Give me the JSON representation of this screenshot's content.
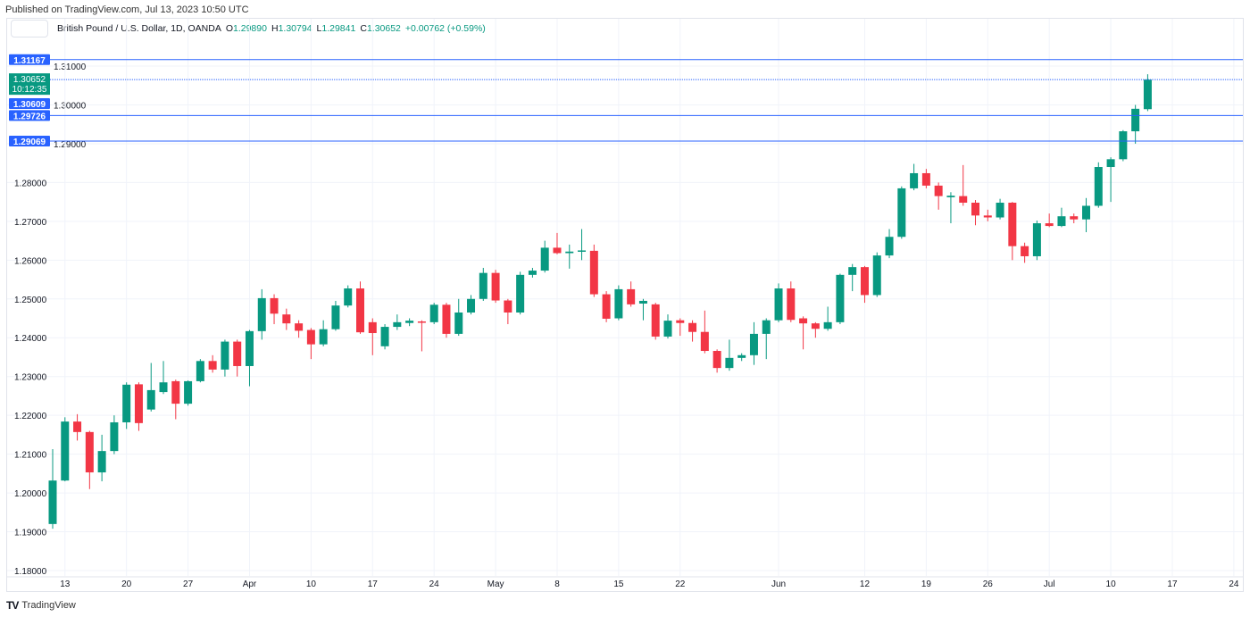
{
  "published": "Published on TradingView.com, Jul 13, 2023 10:50 UTC",
  "logo_text": "TradingView",
  "legend": {
    "symbol": "British Pound / U.S. Dollar, 1D, OANDA",
    "o_label": "O",
    "o": "1.29890",
    "h_label": "H",
    "h": "1.30794",
    "l_label": "L",
    "l": "1.29841",
    "c_label": "C",
    "c": "1.30652",
    "change": "+0.00762 (+0.59%)"
  },
  "colors": {
    "up": "#089981",
    "down": "#f23645",
    "line": "#2962ff",
    "grid": "#f0f3fa"
  },
  "chart_data": {
    "type": "candlestick",
    "title": "British Pound / U.S. Dollar, 1D, OANDA",
    "ylim": [
      1.18,
      1.3135
    ],
    "y_ticks": [
      "1.18000",
      "1.19000",
      "1.20000",
      "1.21000",
      "1.22000",
      "1.23000",
      "1.24000",
      "1.25000",
      "1.26000",
      "1.27000",
      "1.28000",
      "1.29000",
      "1.30000",
      "1.31000"
    ],
    "x_ticks": [
      {
        "i": 1,
        "label": "13"
      },
      {
        "i": 6,
        "label": "20"
      },
      {
        "i": 11,
        "label": "27"
      },
      {
        "i": 16,
        "label": "Apr"
      },
      {
        "i": 21,
        "label": "10"
      },
      {
        "i": 26,
        "label": "17"
      },
      {
        "i": 31,
        "label": "24"
      },
      {
        "i": 36,
        "label": "May"
      },
      {
        "i": 41,
        "label": "8"
      },
      {
        "i": 46,
        "label": "15"
      },
      {
        "i": 51,
        "label": "22"
      },
      {
        "i": 59,
        "label": "Jun"
      },
      {
        "i": 66,
        "label": "12"
      },
      {
        "i": 71,
        "label": "19"
      },
      {
        "i": 76,
        "label": "26"
      },
      {
        "i": 81,
        "label": "Jul"
      },
      {
        "i": 86,
        "label": "10"
      },
      {
        "i": 91,
        "label": "17"
      },
      {
        "i": 96,
        "label": "24"
      }
    ],
    "ohlc": [
      [
        1.192,
        1.2113,
        1.1908,
        1.2032
      ],
      [
        1.2032,
        1.2195,
        1.203,
        1.2184
      ],
      [
        1.2184,
        1.2203,
        1.2135,
        1.2157
      ],
      [
        1.2157,
        1.216,
        1.201,
        1.2053
      ],
      [
        1.2053,
        1.215,
        1.203,
        1.2108
      ],
      [
        1.2108,
        1.22,
        1.21,
        1.2182
      ],
      [
        1.2182,
        1.2285,
        1.2165,
        1.2279
      ],
      [
        1.228,
        1.2285,
        1.216,
        1.218
      ],
      [
        1.2215,
        1.2335,
        1.221,
        1.2265
      ],
      [
        1.226,
        1.234,
        1.2255,
        1.2285
      ],
      [
        1.2288,
        1.2292,
        1.219,
        1.223
      ],
      [
        1.223,
        1.229,
        1.2225,
        1.2288
      ],
      [
        1.2288,
        1.2345,
        1.2285,
        1.234
      ],
      [
        1.234,
        1.2355,
        1.231,
        1.2318
      ],
      [
        1.2318,
        1.2395,
        1.23,
        1.239
      ],
      [
        1.239,
        1.2395,
        1.23,
        1.2327
      ],
      [
        1.2327,
        1.242,
        1.2275,
        1.2417
      ],
      [
        1.2417,
        1.2525,
        1.2395,
        1.2502
      ],
      [
        1.2502,
        1.2512,
        1.2435,
        1.2462
      ],
      [
        1.246,
        1.2475,
        1.242,
        1.2437
      ],
      [
        1.2437,
        1.2445,
        1.24,
        1.2418
      ],
      [
        1.242,
        1.2425,
        1.2345,
        1.2383
      ],
      [
        1.2383,
        1.2445,
        1.2378,
        1.2422
      ],
      [
        1.2422,
        1.2495,
        1.2418,
        1.2483
      ],
      [
        1.2483,
        1.2535,
        1.2478,
        1.2527
      ],
      [
        1.2527,
        1.2545,
        1.241,
        1.2414
      ],
      [
        1.244,
        1.245,
        1.2355,
        1.2412
      ],
      [
        1.2378,
        1.2435,
        1.237,
        1.2428
      ],
      [
        1.2428,
        1.246,
        1.242,
        1.244
      ],
      [
        1.2438,
        1.245,
        1.243,
        1.2444
      ],
      [
        1.2442,
        1.2445,
        1.2365,
        1.244
      ],
      [
        1.244,
        1.249,
        1.2435,
        1.2485
      ],
      [
        1.2485,
        1.249,
        1.24,
        1.241
      ],
      [
        1.241,
        1.25,
        1.2405,
        1.2465
      ],
      [
        1.2465,
        1.251,
        1.246,
        1.25
      ],
      [
        1.25,
        1.258,
        1.2495,
        1.2567
      ],
      [
        1.2567,
        1.2575,
        1.249,
        1.2496
      ],
      [
        1.2496,
        1.25,
        1.2435,
        1.2465
      ],
      [
        1.2465,
        1.257,
        1.246,
        1.2562
      ],
      [
        1.2562,
        1.258,
        1.2555,
        1.2573
      ],
      [
        1.2573,
        1.265,
        1.2568,
        1.2632
      ],
      [
        1.2632,
        1.267,
        1.2615,
        1.2618
      ],
      [
        1.2618,
        1.264,
        1.2578,
        1.2622
      ],
      [
        1.2622,
        1.268,
        1.26,
        1.2625
      ],
      [
        1.2624,
        1.264,
        1.2505,
        1.2512
      ],
      [
        1.2512,
        1.252,
        1.244,
        1.2449
      ],
      [
        1.245,
        1.2535,
        1.2445,
        1.2525
      ],
      [
        1.2525,
        1.2545,
        1.248,
        1.2486
      ],
      [
        1.2488,
        1.25,
        1.2445,
        1.2495
      ],
      [
        1.2486,
        1.249,
        1.2395,
        1.2403
      ],
      [
        1.2403,
        1.246,
        1.2398,
        1.2444
      ],
      [
        1.2445,
        1.245,
        1.2405,
        1.2438
      ],
      [
        1.2438,
        1.2445,
        1.239,
        1.2415
      ],
      [
        1.2415,
        1.247,
        1.236,
        1.2366
      ],
      [
        1.2366,
        1.237,
        1.231,
        1.2322
      ],
      [
        1.2322,
        1.2395,
        1.2315,
        1.2348
      ],
      [
        1.2348,
        1.236,
        1.234,
        1.2355
      ],
      [
        1.2355,
        1.244,
        1.233,
        1.241
      ],
      [
        1.241,
        1.245,
        1.2345,
        1.2445
      ],
      [
        1.2445,
        1.254,
        1.244,
        1.2527
      ],
      [
        1.2527,
        1.2545,
        1.244,
        1.2446
      ],
      [
        1.245,
        1.2455,
        1.237,
        1.2437
      ],
      [
        1.2437,
        1.244,
        1.24,
        1.2423
      ],
      [
        1.2423,
        1.248,
        1.2418,
        1.244
      ],
      [
        1.244,
        1.2565,
        1.2435,
        1.2562
      ],
      [
        1.2562,
        1.259,
        1.252,
        1.2582
      ],
      [
        1.2582,
        1.2585,
        1.249,
        1.251
      ],
      [
        1.251,
        1.262,
        1.2505,
        1.2612
      ],
      [
        1.2612,
        1.268,
        1.2605,
        1.266
      ],
      [
        1.266,
        1.279,
        1.2655,
        1.2785
      ],
      [
        1.2785,
        1.2848,
        1.278,
        1.2824
      ],
      [
        1.2824,
        1.2835,
        1.2785,
        1.2792
      ],
      [
        1.2792,
        1.28,
        1.273,
        1.2765
      ],
      [
        1.2762,
        1.2775,
        1.2695,
        1.2766
      ],
      [
        1.2765,
        1.2845,
        1.274,
        1.2748
      ],
      [
        1.2748,
        1.2755,
        1.269,
        1.2715
      ],
      [
        1.2715,
        1.273,
        1.27,
        1.271
      ],
      [
        1.271,
        1.2758,
        1.2705,
        1.2748
      ],
      [
        1.2748,
        1.275,
        1.26,
        1.2636
      ],
      [
        1.2636,
        1.2645,
        1.2593,
        1.261
      ],
      [
        1.261,
        1.2702,
        1.26,
        1.2695
      ],
      [
        1.2695,
        1.272,
        1.2685,
        1.2688
      ],
      [
        1.2688,
        1.2735,
        1.2685,
        1.2713
      ],
      [
        1.2713,
        1.272,
        1.2695,
        1.2705
      ],
      [
        1.2705,
        1.276,
        1.2672,
        1.274
      ],
      [
        1.274,
        1.2852,
        1.2735,
        1.284
      ],
      [
        1.284,
        1.2865,
        1.275,
        1.286
      ],
      [
        1.286,
        1.2935,
        1.2855,
        1.2932
      ],
      [
        1.2932,
        1.3,
        1.29,
        1.299
      ],
      [
        1.2989,
        1.3079,
        1.2984,
        1.3065
      ]
    ],
    "horizontal_lines": [
      {
        "price": "1.31167",
        "style": "solid"
      },
      {
        "price": "1.30652",
        "style": "dotted",
        "current": true,
        "countdown": "10:12:35"
      },
      {
        "price": "1.30609",
        "style": "label"
      },
      {
        "price": "1.29726",
        "style": "solid"
      },
      {
        "price": "1.29069",
        "style": "solid"
      }
    ]
  }
}
